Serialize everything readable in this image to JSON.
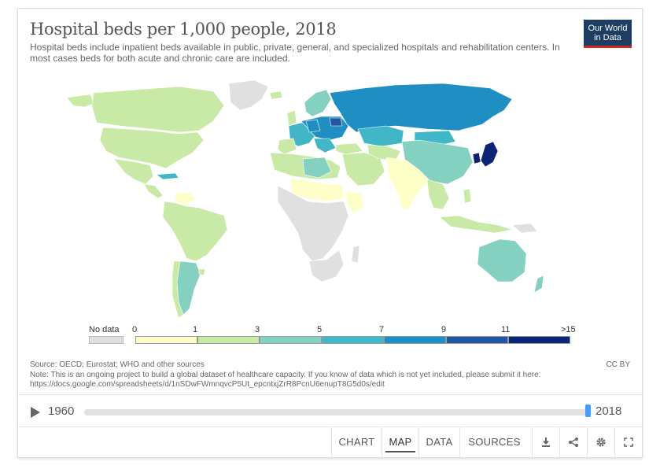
{
  "header": {
    "title": "Hospital beds per 1,000 people, 2018",
    "subtitle": "Hospital beds include inpatient beds available in public, private, general, and specialized hospitals and rehabilitation centers. In most cases beds for both acute and chronic care are included.",
    "logo_line1": "Our World",
    "logo_line2": "in Data"
  },
  "legend": {
    "no_data_label": "No data",
    "no_data_color": "#e0e0e0",
    "ticks": [
      "0",
      "1",
      "3",
      "5",
      "7",
      "9",
      "11",
      ">15"
    ],
    "colors": [
      "#feffc8",
      "#c9e9a6",
      "#84d0c1",
      "#40b6c7",
      "#1f8fc3",
      "#2357a3",
      "#0c2474"
    ]
  },
  "map": {
    "colors": {
      "no_data": "#e0e0e0",
      "b0_1": "#feffc8",
      "b1_3": "#c9e9a6",
      "b3_5": "#84d0c1",
      "b5_7": "#40b6c7",
      "b7_9": "#1f8fc3",
      "b9_11": "#2357a3",
      "b11_15": "#0c2474"
    }
  },
  "footer": {
    "source": "Source: OECD; Eurostat; WHO and other sources",
    "note": "Note: This is an ongoing project to build a global dataset of healthcare capacity. If you know of data which is not yet included, please submit it here:",
    "link": "https://docs.google.com/spreadsheets/d/1nSDwFWmnqvcP5Ut_epcntxjZrR8PcnU6enupT8G5d0s/edit",
    "license": "CC BY"
  },
  "timeline": {
    "start_year": "1960",
    "end_year": "2018",
    "position_fraction": 1.0
  },
  "controls": {
    "tabs": [
      "CHART",
      "MAP",
      "DATA",
      "SOURCES"
    ],
    "active_tab": "MAP",
    "icons": [
      "download-icon",
      "share-icon",
      "settings-icon",
      "fullscreen-icon"
    ]
  }
}
